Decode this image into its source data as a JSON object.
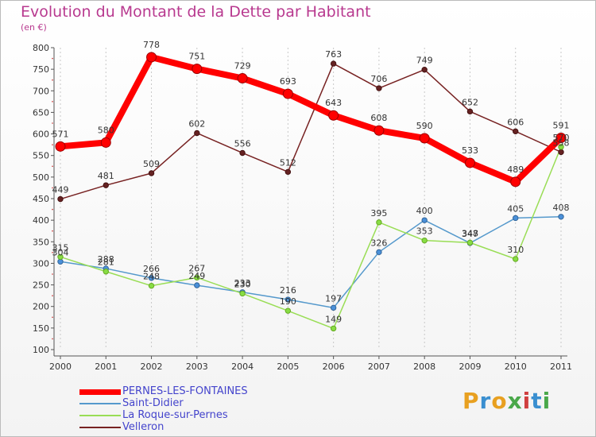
{
  "header": {
    "title": "Evolution du Montant de la Dette par Habitant",
    "unit": "(en €)"
  },
  "logo": {
    "text": "Proxiti",
    "colors": [
      "#e8a020",
      "#3a8fd0",
      "#e8a020",
      "#4aa84a",
      "#d04040",
      "#3a8fd0",
      "#4aa84a"
    ]
  },
  "chart_data": {
    "type": "line",
    "title": "Evolution du Montant de la Dette par Habitant",
    "ylabel": "(en €)",
    "xlabel": "",
    "x": [
      "2000",
      "2001",
      "2002",
      "2003",
      "2004",
      "2005",
      "2006",
      "2007",
      "2008",
      "2009",
      "2010",
      "2011"
    ],
    "ylim": [
      100,
      800
    ],
    "yticks": [
      100,
      150,
      200,
      250,
      300,
      350,
      400,
      450,
      500,
      550,
      600,
      650,
      700,
      750,
      800
    ],
    "grid": "vertical",
    "legend_position": "bottom-left",
    "series": [
      {
        "name": "PERNES-LES-FONTAINES",
        "color": "#ff0000",
        "values": [
          571,
          580,
          778,
          751,
          729,
          693,
          643,
          608,
          590,
          533,
          489,
          591
        ]
      },
      {
        "name": "Saint-Didier",
        "color": "#5599cc",
        "values": [
          304,
          288,
          266,
          249,
          233,
          216,
          197,
          326,
          400,
          347,
          405,
          408
        ]
      },
      {
        "name": "La Roque-sur-Pernes",
        "color": "#99dd55",
        "values": [
          315,
          281,
          248,
          267,
          230,
          190,
          149,
          395,
          353,
          348,
          310,
          570
        ]
      },
      {
        "name": "Velleron",
        "color": "#772222",
        "values": [
          449,
          481,
          509,
          602,
          556,
          512,
          763,
          706,
          749,
          652,
          606,
          558
        ]
      }
    ]
  }
}
